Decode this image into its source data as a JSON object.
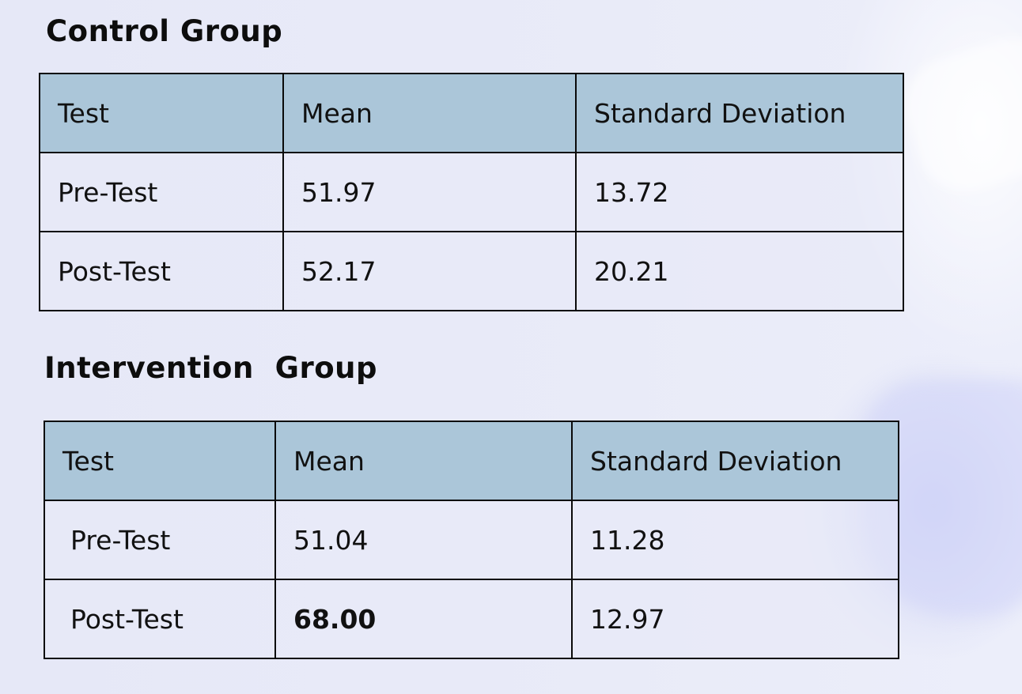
{
  "control_group": {
    "title": "Control Group",
    "headers": [
      "Test",
      "Mean",
      "Standard Deviation"
    ],
    "rows": [
      {
        "test": "Pre-Test",
        "mean": "51.97",
        "sd": "13.72"
      },
      {
        "test": "Post-Test",
        "mean": "52.17",
        "sd": "20.21"
      }
    ]
  },
  "intervention_group": {
    "title": "Intervention  Group",
    "headers": [
      "Test",
      "Mean",
      "Standard Deviation"
    ],
    "rows": [
      {
        "test": "Pre-Test",
        "mean": "51.04",
        "sd": "11.28"
      },
      {
        "test": "Post-Test",
        "mean": "68.00",
        "sd": "12.97",
        "mean_emphasized": true
      }
    ]
  },
  "colors": {
    "header_fill": "#abc6d9",
    "border": "#0a0a0a",
    "background": "#e7e9f7"
  }
}
